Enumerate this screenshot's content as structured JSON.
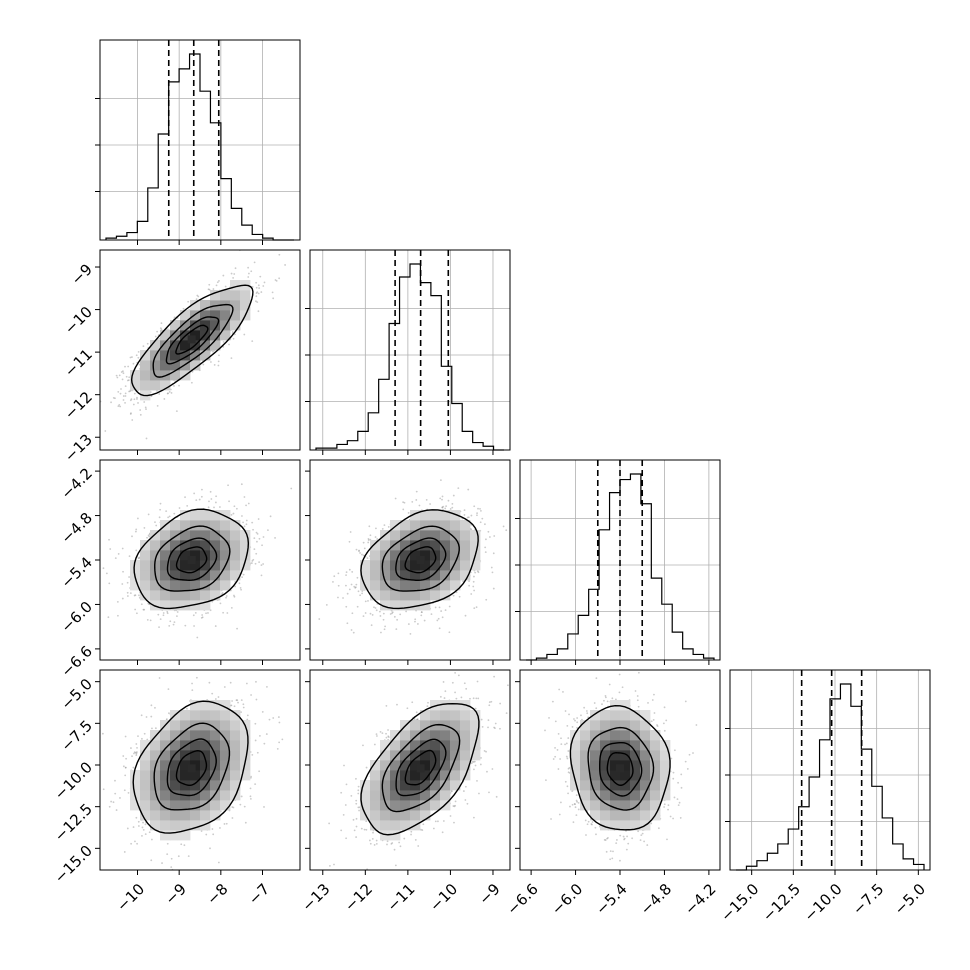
{
  "chart_data": {
    "type": "corner",
    "grid": true,
    "variables": [
      {
        "index": 0,
        "lim": [
          -10.9,
          -6.1
        ],
        "ticks": [
          -10,
          -9,
          -8,
          -7
        ],
        "tick_labels": [
          "−10",
          "−9",
          "−8",
          "−7"
        ],
        "quantiles": [
          -9.25,
          -8.65,
          -8.05
        ],
        "hist_bins": [
          0.01,
          0.02,
          0.04,
          0.1,
          0.28,
          0.57,
          0.85,
          0.92,
          1.0,
          0.8,
          0.63,
          0.33,
          0.17,
          0.08,
          0.03,
          0.01,
          0.0,
          0.0
        ]
      },
      {
        "index": 1,
        "lim": [
          -13.3,
          -8.6
        ],
        "ticks": [
          -13,
          -12,
          -11,
          -10,
          -9
        ],
        "tick_labels": [
          "−13",
          "−12",
          "−11",
          "−10",
          "−9"
        ],
        "quantiles": [
          -11.3,
          -10.7,
          -10.05
        ],
        "hist_bins": [
          0.01,
          0.01,
          0.03,
          0.05,
          0.1,
          0.2,
          0.38,
          0.68,
          0.93,
          1.0,
          0.9,
          0.83,
          0.45,
          0.25,
          0.1,
          0.04,
          0.02,
          0.0
        ]
      },
      {
        "index": 2,
        "lim": [
          -6.75,
          -4.05
        ],
        "ticks": [
          -6.6,
          -6.0,
          -5.4,
          -4.8,
          -4.2
        ],
        "tick_labels": [
          "−6.6",
          "−6.0",
          "−5.4",
          "−4.8",
          "−4.2"
        ],
        "quantiles": [
          -5.7,
          -5.4,
          -5.1
        ],
        "hist_bins": [
          0.0,
          0.01,
          0.03,
          0.06,
          0.14,
          0.24,
          0.38,
          0.7,
          0.9,
          0.97,
          1.0,
          0.84,
          0.44,
          0.3,
          0.15,
          0.06,
          0.03,
          0.01
        ]
      },
      {
        "index": 3,
        "lim": [
          -16.3,
          -4.3
        ],
        "ticks": [
          -15.0,
          -12.5,
          -10.0,
          -7.5,
          -5.0
        ],
        "tick_labels": [
          "−15.0",
          "−12.5",
          "−10.0",
          "−7.5",
          "−5.0"
        ],
        "quantiles": [
          -12.0,
          -10.2,
          -8.4
        ],
        "hist_bins": [
          0.0,
          0.02,
          0.05,
          0.09,
          0.14,
          0.22,
          0.34,
          0.5,
          0.7,
          0.92,
          1.0,
          0.88,
          0.65,
          0.45,
          0.28,
          0.14,
          0.06,
          0.03
        ]
      }
    ],
    "pairs": [
      {
        "x": 0,
        "y": 1,
        "mean": [
          -8.7,
          -10.7
        ],
        "sd": [
          0.7,
          0.62
        ],
        "rho": 0.8
      },
      {
        "x": 0,
        "y": 2,
        "mean": [
          -8.7,
          -5.4
        ],
        "sd": [
          0.66,
          0.32
        ],
        "rho": 0.25
      },
      {
        "x": 1,
        "y": 2,
        "mean": [
          -10.7,
          -5.4
        ],
        "sd": [
          0.66,
          0.32
        ],
        "rho": 0.3
      },
      {
        "x": 0,
        "y": 3,
        "mean": [
          -8.7,
          -10.2
        ],
        "sd": [
          0.66,
          1.9
        ],
        "rho": 0.3
      },
      {
        "x": 1,
        "y": 3,
        "mean": [
          -10.7,
          -10.2
        ],
        "sd": [
          0.66,
          1.9
        ],
        "rho": 0.55
      },
      {
        "x": 2,
        "y": 3,
        "mean": [
          -5.4,
          -10.2
        ],
        "sd": [
          0.32,
          1.8
        ],
        "rho": -0.08
      }
    ],
    "contour_levels_sigma": [
      0.5,
      1.0,
      1.5,
      2.0
    ],
    "colors": {
      "line": "#000000",
      "points": "#8c8c8c",
      "grid": "#b0b0b0",
      "density_dark": "#2a2a2a",
      "density_light": "#f2f2f2"
    }
  }
}
